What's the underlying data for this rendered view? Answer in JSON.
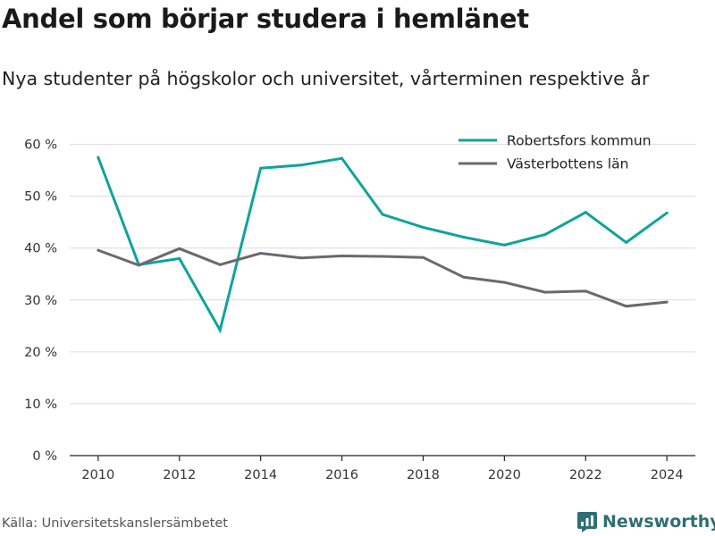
{
  "title": "Andel som börjar studera i hemlänet",
  "subtitle": "Nya studenter på högskolor och universitet, vårterminen respektive år",
  "source": "Källa: Universitetskanslersämbetet",
  "brand": "Newsworthy",
  "chart_data": {
    "type": "line",
    "x": [
      2010,
      2011,
      2012,
      2013,
      2014,
      2015,
      2016,
      2017,
      2018,
      2019,
      2020,
      2021,
      2022,
      2023,
      2024
    ],
    "xticks": [
      2010,
      2012,
      2014,
      2016,
      2018,
      2020,
      2022,
      2024
    ],
    "yticks": [
      0,
      10,
      20,
      30,
      40,
      50,
      60
    ],
    "ytick_labels": [
      "0 %",
      "10 %",
      "20 %",
      "30 %",
      "40 %",
      "50 %",
      "60 %"
    ],
    "xlim": [
      2009.3,
      2024.7
    ],
    "ylim": [
      0,
      62
    ],
    "grid": true,
    "legend_position": "top-right",
    "series": [
      {
        "name": "Robertsfors kommun",
        "color": "#0fa39b",
        "values": [
          57.5,
          36.8,
          38.0,
          24.2,
          55.4,
          56.0,
          57.3,
          46.5,
          44.0,
          42.1,
          40.6,
          42.6,
          46.9,
          41.1,
          46.8
        ]
      },
      {
        "name": "Västerbottens län",
        "color": "#6b6870",
        "values": [
          39.6,
          36.7,
          39.9,
          36.8,
          39.0,
          38.1,
          38.5,
          38.4,
          38.2,
          34.4,
          33.4,
          31.5,
          31.7,
          28.8,
          29.6
        ]
      }
    ]
  }
}
